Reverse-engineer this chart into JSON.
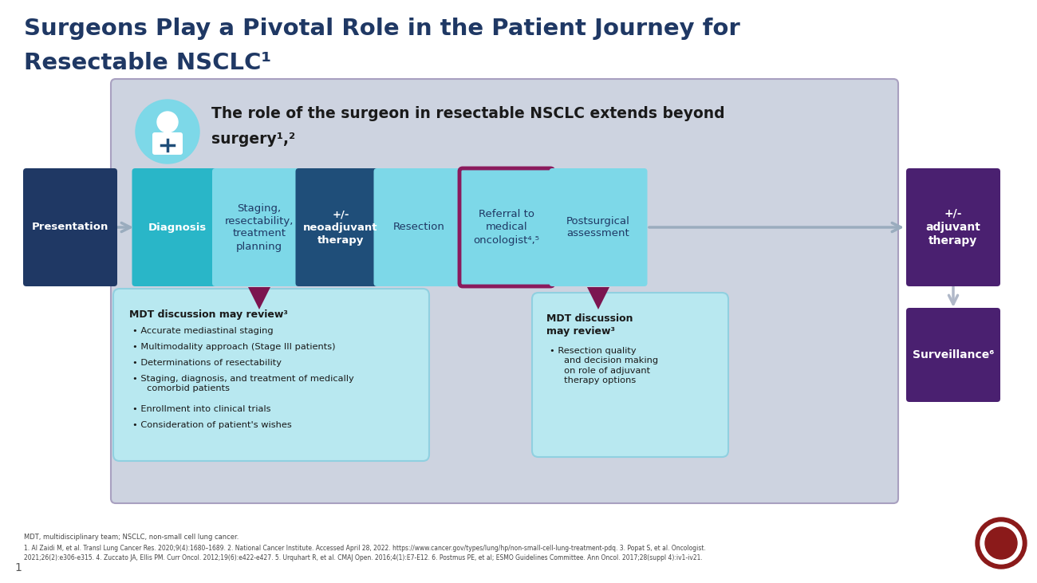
{
  "title_line1": "Surgeons Play a Pivotal Role in the Patient Journey for",
  "title_line2": "Resectable NSCLC¹",
  "title_color": "#1F3864",
  "bg_outer": "#ffffff",
  "bg_inner_color": "#d8dce8",
  "bg_inner_border": "#b8b0c8",
  "subtitle_text1": "The role of the surgeon in resectable NSCLC extends beyond",
  "subtitle_text2": "surgery¹,²",
  "flow_boxes": [
    {
      "label": "Presentation",
      "fc": "#1F3864",
      "tc": "#ffffff",
      "bold": true,
      "border": null
    },
    {
      "label": "Diagnosis",
      "fc": "#29B6C8",
      "tc": "#ffffff",
      "bold": true,
      "border": null
    },
    {
      "label": "Staging,\nresectability,\ntreatment\nplanning",
      "fc": "#7DD8E8",
      "tc": "#1F3864",
      "bold": false,
      "border": null
    },
    {
      "label": "+/-\nneoadjuvant\ntherapy",
      "fc": "#1F4E79",
      "tc": "#ffffff",
      "bold": true,
      "border": null
    },
    {
      "label": "Resection",
      "fc": "#7DD8E8",
      "tc": "#1F3864",
      "bold": false,
      "border": null
    },
    {
      "label": "Referral to\nmedical\noncologist⁴,⁵",
      "fc": "#7DD8E8",
      "tc": "#1F3864",
      "bold": false,
      "border": "#8B1A5C"
    },
    {
      "label": "Postsurgical\nassessment",
      "fc": "#7DD8E8",
      "tc": "#1F3864",
      "bold": false,
      "border": null
    }
  ],
  "right_boxes": [
    {
      "label": "+/-\nadjuvant\ntherapy",
      "fc": "#4A2070",
      "tc": "#ffffff",
      "bold": true
    },
    {
      "label": "Surveillance⁶",
      "fc": "#4A2070",
      "tc": "#ffffff",
      "bold": true
    }
  ],
  "mdt_left_title": "MDT discussion may review³",
  "mdt_left_bullets": [
    "Accurate mediastinal staging",
    "Multimodality approach (Stage III patients)",
    "Determinations of resectability",
    "Staging, diagnosis, and treatment of medically\n     comorbid patients",
    "Enrollment into clinical trials",
    "Consideration of patient's wishes"
  ],
  "mdt_right_title": "MDT discussion\nmay review³",
  "mdt_right_bullets": [
    "Resection quality\n     and decision making\n     on role of adjuvant\n     therapy options"
  ],
  "footnote_line1": "MDT, multidisciplinary team; NSCLC, non-small cell lung cancer.",
  "footnote_line2": "1. Al Zaidi M, et al. Transl Lung Cancer Res. 2020;9(4):1680–1689. 2. National Cancer Institute. Accessed April 28, 2022. https://www.cancer.gov/types/lung/hp/non-small-cell-lung-treatment-pdq. 3. Popat S, et al. Oncologist.",
  "footnote_line3": "2021;26(2):e306-e315. 4. Zuccato JA, Ellis PM. Curr Oncol. 2012;19(6):e422-e427. 5. Urquhart R, et al. CMAJ Open. 2016;4(1):E7-E12. 6. Postmus PE, et al; ESMO Guidelines Committee. Ann Oncol. 2017;28(suppl 4):iv1-iv21."
}
